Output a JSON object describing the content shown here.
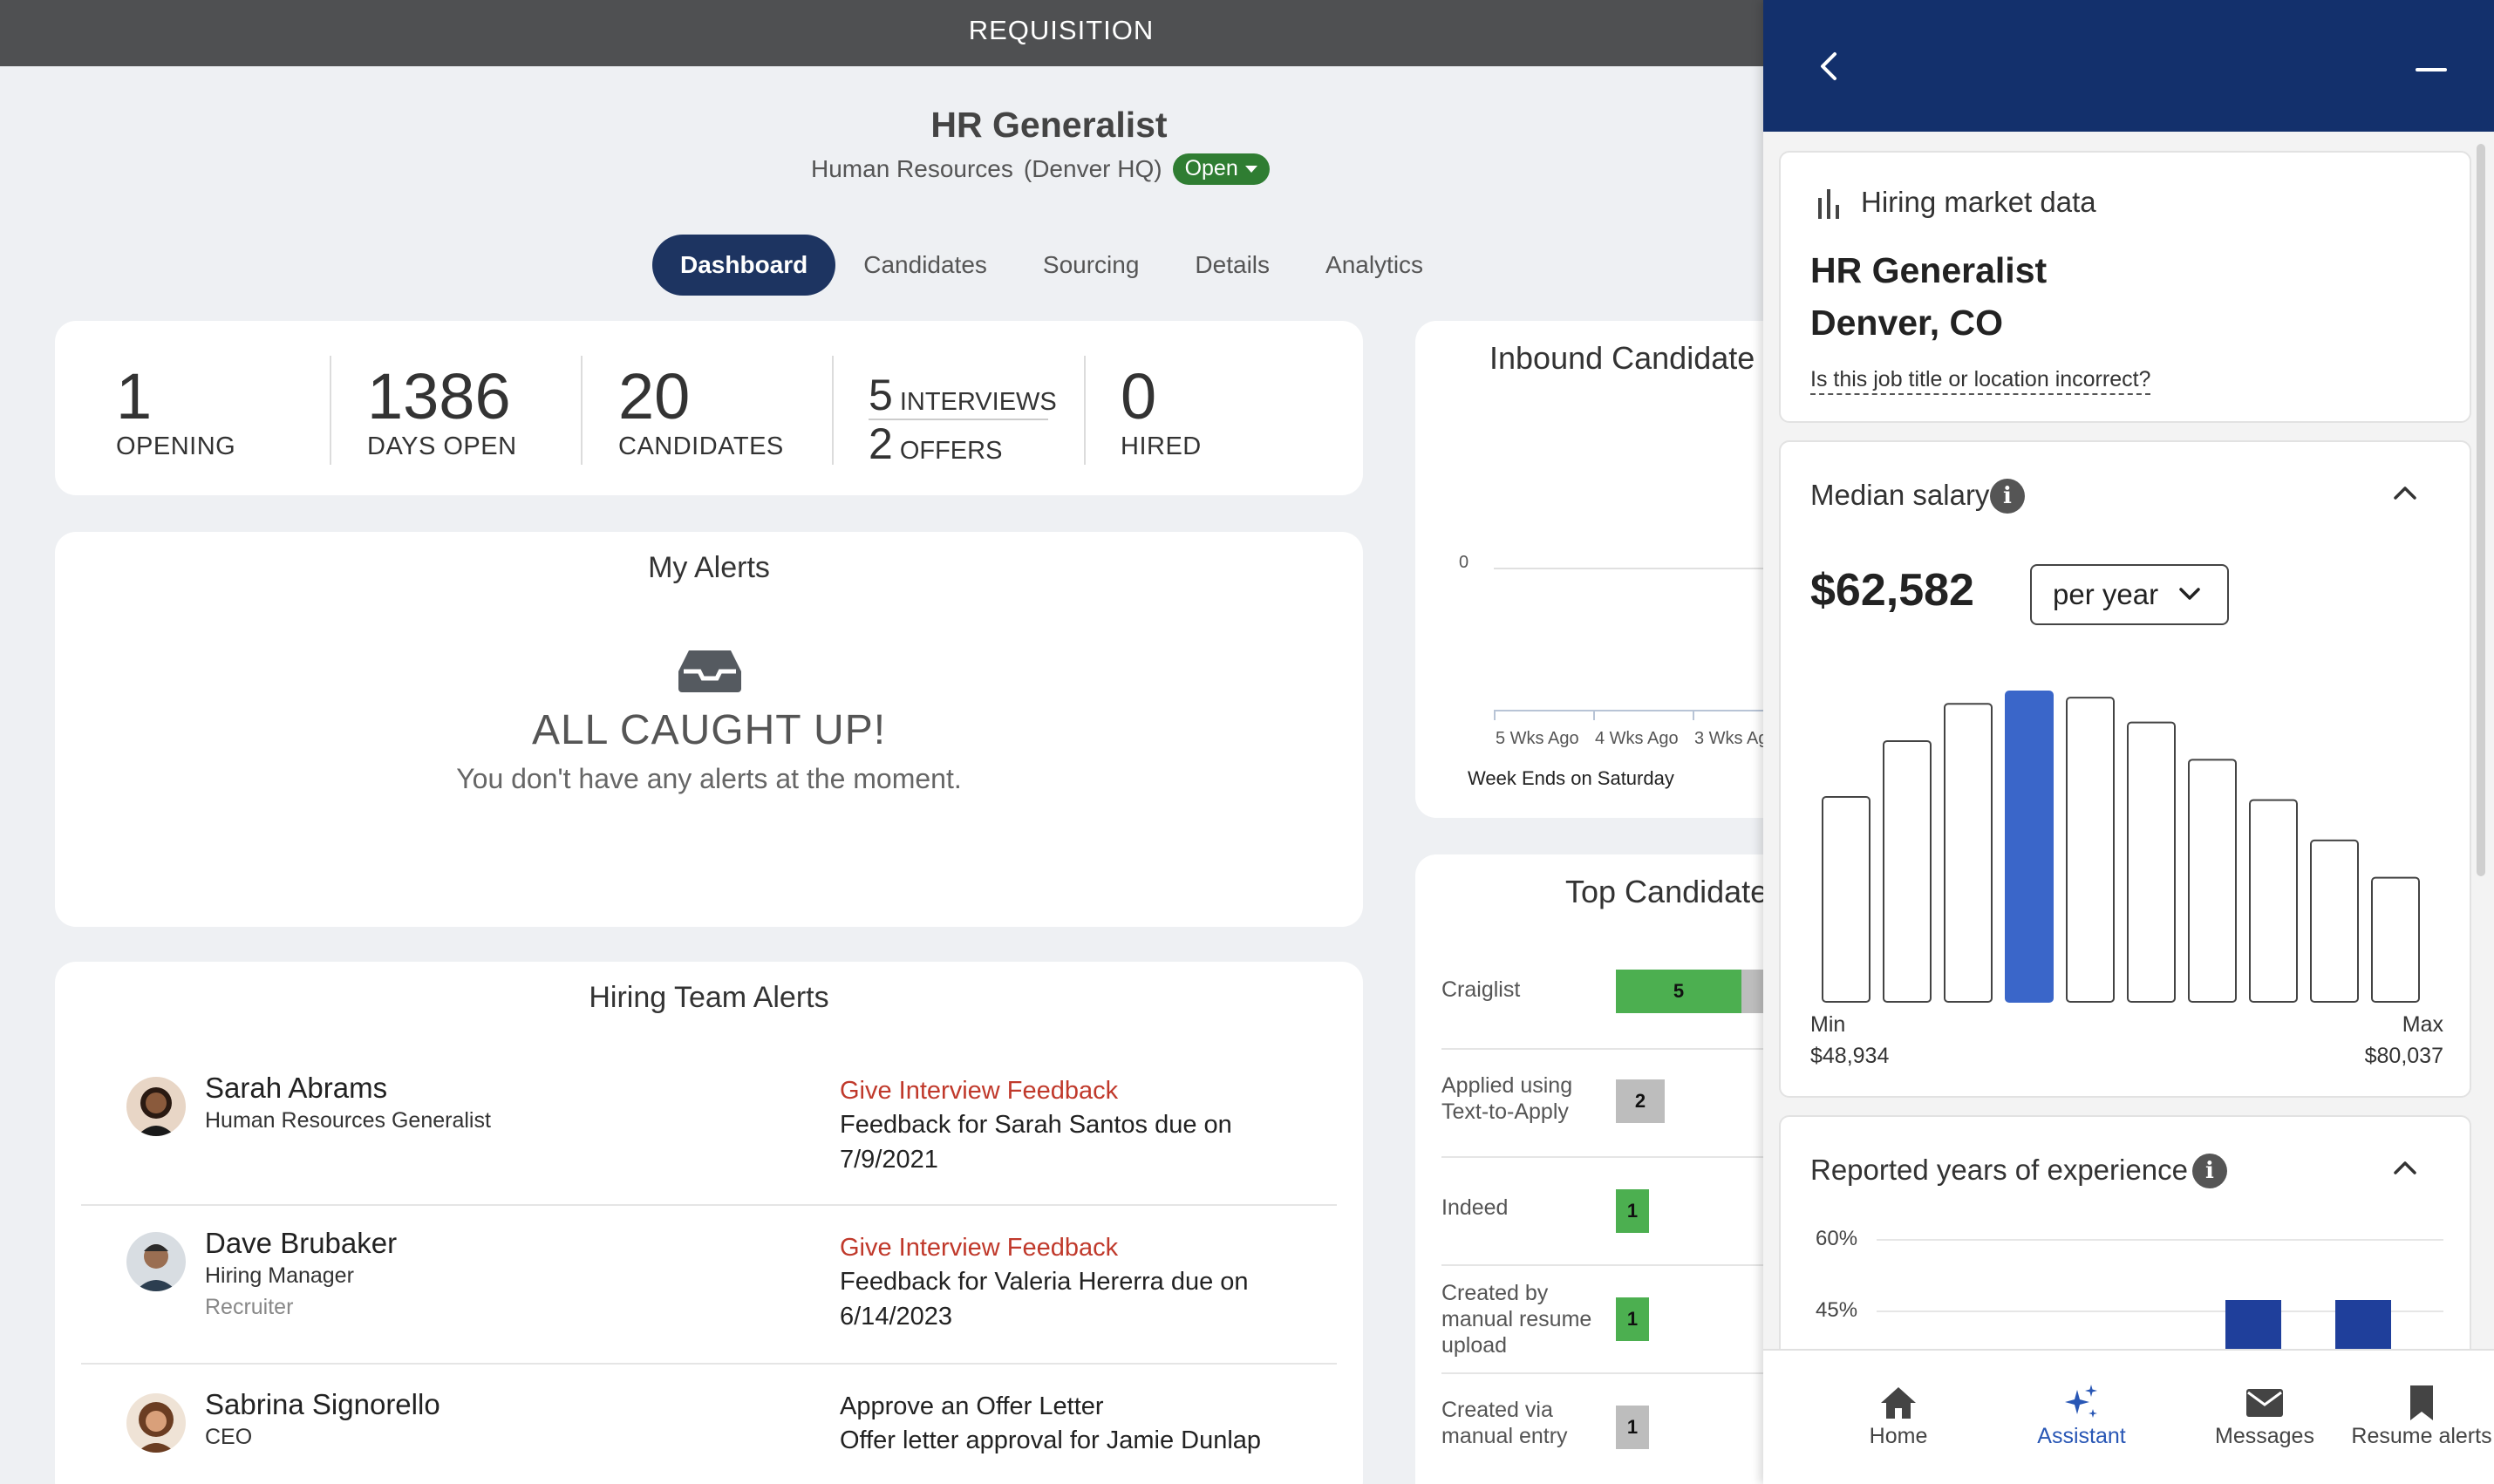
{
  "topbar": {
    "title": "REQUISITION"
  },
  "job": {
    "title": "HR Generalist",
    "department": "Human Resources",
    "location": "(Denver HQ)",
    "status": "Open"
  },
  "tabs": [
    {
      "label": "Dashboard",
      "active": true
    },
    {
      "label": "Candidates"
    },
    {
      "label": "Sourcing"
    },
    {
      "label": "Details"
    },
    {
      "label": "Analytics"
    }
  ],
  "stats": {
    "openings": {
      "value": "1",
      "label": "OPENING"
    },
    "days_open": {
      "value": "1386",
      "label": "DAYS OPEN"
    },
    "candidates": {
      "value": "20",
      "label": "CANDIDATES"
    },
    "interviews": {
      "value": "5",
      "label": "INTERVIEWS"
    },
    "offers": {
      "value": "2",
      "label": "OFFERS"
    },
    "hired": {
      "value": "0",
      "label": "HIRED"
    }
  },
  "my_alerts": {
    "title": "My Alerts",
    "headline": "ALL CAUGHT UP!",
    "message": "You don't have any alerts at the moment."
  },
  "hiring_team_alerts": {
    "title": "Hiring Team Alerts",
    "rows": [
      {
        "name": "Sarah Abrams",
        "role": "Human Resources Generalist",
        "role2": "",
        "action": "Give Interview Feedback",
        "desc": "Feedback for Sarah Santos due on 7/9/2021",
        "action_red": true
      },
      {
        "name": "Dave Brubaker",
        "role": "Hiring Manager",
        "role2": "Recruiter",
        "action": "Give Interview Feedback",
        "desc": "Feedback for Valeria Hererra due on 6/14/2023",
        "action_red": true
      },
      {
        "name": "Sabrina Signorello",
        "role": "CEO",
        "role2": "",
        "action": "Approve an Offer Letter",
        "desc": "Offer letter approval for Jamie Dunlap",
        "action_red": false
      }
    ]
  },
  "inbound": {
    "title": "Inbound Candidate",
    "y_tick": "0",
    "x_ticks": [
      "5 Wks Ago",
      "4 Wks Ago",
      "3 Wks Ag"
    ],
    "xlabel": "Week Ends on Saturday"
  },
  "top_candidates": {
    "title": "Top Candidate",
    "sources": [
      {
        "label": "Craiglist",
        "value": "5",
        "color": "#4caf50"
      },
      {
        "label": "Applied using Text-to-Apply",
        "value": "2",
        "color": "#bdbdbd"
      },
      {
        "label": "Indeed",
        "value": "1",
        "color": "#4caf50"
      },
      {
        "label": "Created by manual resume upload",
        "value": "1",
        "color": "#4caf50"
      },
      {
        "label": "Created via manual entry",
        "value": "1",
        "color": "#bdbdbd"
      }
    ]
  },
  "panel": {
    "market": {
      "heading": "Hiring market data",
      "job": "HR Generalist",
      "location": "Denver, CO",
      "incorrect_link": "Is this job title or location incorrect?"
    },
    "salary": {
      "heading": "Median salary",
      "value": "$62,582",
      "period": "per year",
      "min_label": "Min",
      "min_value": "$48,934",
      "max_label": "Max",
      "max_value": "$80,037"
    },
    "experience": {
      "heading": "Reported years of experience",
      "ticks": [
        "60%",
        "45%"
      ]
    },
    "nav": [
      {
        "label": "Home",
        "active": false
      },
      {
        "label": "Assistant",
        "active": true
      },
      {
        "label": "Messages",
        "active": false
      },
      {
        "label": "Resume alerts",
        "active": false
      }
    ]
  },
  "chart_data": [
    {
      "type": "bar",
      "title": "Median salary",
      "categories": [
        "1",
        "2",
        "3",
        "4",
        "5",
        "6",
        "7",
        "8",
        "9",
        "10"
      ],
      "values": [
        0.66,
        0.84,
        0.96,
        1.0,
        0.98,
        0.9,
        0.78,
        0.65,
        0.52,
        0.4
      ],
      "highlight_index": 3,
      "xlabel": "",
      "ylabel": ""
    },
    {
      "type": "bar",
      "title": "Reported years of experience",
      "ylim": [
        0,
        60
      ],
      "y_ticks": [
        45,
        60
      ],
      "visible_bars_top_percent": [
        45,
        45
      ]
    }
  ]
}
